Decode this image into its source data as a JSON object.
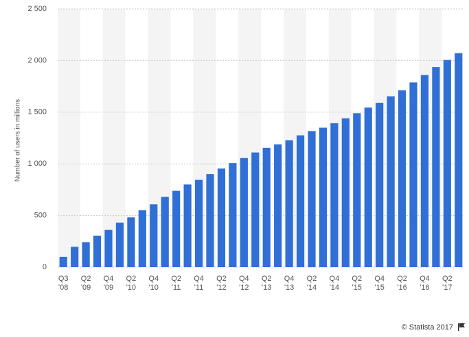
{
  "chart_data": {
    "type": "bar",
    "ylabel": "Number of users in millions",
    "categories": [
      "Q3 '08",
      null,
      "Q2 '09",
      null,
      "Q4 '09",
      null,
      "Q2 '10",
      null,
      "Q4 '10",
      null,
      "Q2 '11",
      null,
      "Q4 '11",
      null,
      "Q2 '12",
      null,
      "Q4 '12",
      null,
      "Q2 '13",
      null,
      "Q4 '13",
      null,
      "Q2 '14",
      null,
      "Q4 '14",
      null,
      "Q2 '15",
      null,
      "Q4 '15",
      null,
      "Q2 '16",
      null,
      "Q4 '16",
      null,
      "Q2 '17",
      null
    ],
    "values": [
      100,
      197,
      242,
      305,
      360,
      431,
      482,
      550,
      608,
      680,
      739,
      800,
      845,
      901,
      955,
      1007,
      1056,
      1110,
      1155,
      1189,
      1228,
      1276,
      1317,
      1350,
      1393,
      1441,
      1490,
      1545,
      1591,
      1654,
      1712,
      1788,
      1860,
      1936,
      2006,
      2072
    ],
    "color": "#2f6fd6",
    "ylim": [
      0,
      2500
    ],
    "yticks": [
      0,
      500,
      {
        "value": 1000,
        "label": "1 000"
      },
      {
        "value": 1500,
        "label": "1 500"
      },
      {
        "value": 2000,
        "label": "2 000"
      },
      {
        "value": 2500,
        "label": "2 500"
      }
    ],
    "grid": true,
    "source": "© Statista 2017"
  }
}
